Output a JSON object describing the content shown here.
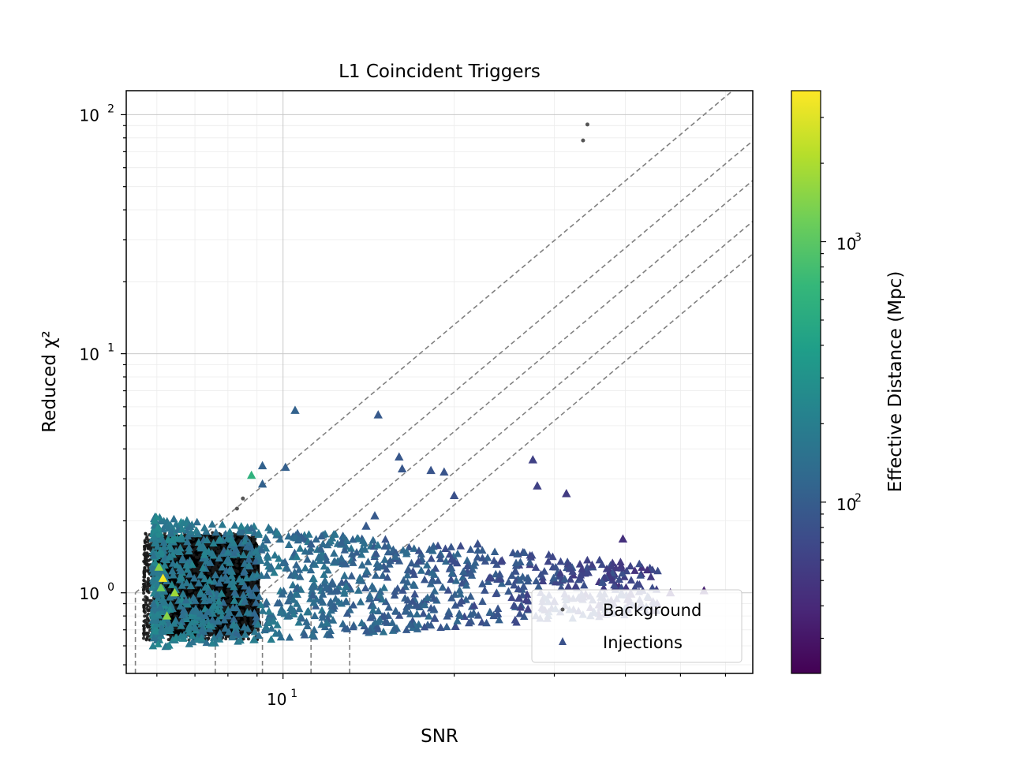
{
  "chart_data": {
    "type": "scatter",
    "title": "L1 Coincident Triggers",
    "xlabel": "SNR",
    "ylabel": "Reduced χ²",
    "xscale": "log",
    "yscale": "log",
    "xlim": [
      5.3,
      67
    ],
    "ylim": [
      0.46,
      126
    ],
    "x_ticks": [
      {
        "value": 10,
        "label": "10",
        "exp": "1"
      }
    ],
    "y_ticks": [
      {
        "value": 1,
        "label": "10",
        "exp": "0"
      },
      {
        "value": 10,
        "label": "10",
        "exp": "1"
      },
      {
        "value": 100,
        "label": "10",
        "exp": "2"
      }
    ],
    "grid": true,
    "legend": {
      "placement": "lower-right",
      "entries": [
        {
          "label": "Background",
          "marker": "dot",
          "color": "#555555"
        },
        {
          "label": "Injections",
          "marker": "triangle",
          "color": "#3b528b"
        }
      ]
    },
    "colorbar": {
      "label": "Effective Distance (Mpc)",
      "scale": "log",
      "range": [
        22,
        3800
      ],
      "cmap": "viridis",
      "ticks": [
        {
          "value": 100,
          "label": "10",
          "exp": "2"
        },
        {
          "value": 1000,
          "label": "10",
          "exp": "3"
        }
      ]
    },
    "threshold_lines": [
      {
        "snr0": 5.5,
        "chisq0": 1.0
      },
      {
        "snr0": 7.6,
        "chisq0": 1.0
      },
      {
        "snr0": 9.2,
        "chisq0": 1.0
      },
      {
        "snr0": 11.2,
        "chisq0": 1.0
      },
      {
        "snr0": 13.1,
        "chisq0": 1.0
      }
    ],
    "series": [
      {
        "name": "Background",
        "marker": "dot",
        "color": "#555555",
        "cluster": {
          "snr_range": [
            5.8,
            9.1
          ],
          "chisq_range": [
            0.66,
            1.75
          ],
          "shape": "dense"
        },
        "points": [
          {
            "x": 34.3,
            "y": 91.0
          },
          {
            "x": 33.7,
            "y": 78.0
          },
          {
            "x": 8.5,
            "y": 2.48
          },
          {
            "x": 8.3,
            "y": 2.25
          }
        ]
      },
      {
        "name": "Injections",
        "marker": "triangle",
        "color_by": "effective_distance_mpc",
        "points": [
          {
            "x": 10.5,
            "y": 5.8,
            "c": 110
          },
          {
            "x": 14.7,
            "y": 5.55,
            "c": 95
          },
          {
            "x": 9.2,
            "y": 3.4,
            "c": 110
          },
          {
            "x": 10.1,
            "y": 3.35,
            "c": 105
          },
          {
            "x": 8.8,
            "y": 3.1,
            "c": 600
          },
          {
            "x": 16.2,
            "y": 3.3,
            "c": 90
          },
          {
            "x": 18.2,
            "y": 3.25,
            "c": 85
          },
          {
            "x": 19.2,
            "y": 3.2,
            "c": 85
          },
          {
            "x": 27.5,
            "y": 3.6,
            "c": 60
          },
          {
            "x": 9.2,
            "y": 2.85,
            "c": 110
          },
          {
            "x": 28.0,
            "y": 2.8,
            "c": 60
          },
          {
            "x": 16.0,
            "y": 3.7,
            "c": 90
          },
          {
            "x": 20.0,
            "y": 2.55,
            "c": 80
          },
          {
            "x": 31.5,
            "y": 2.6,
            "c": 55
          },
          {
            "x": 14.5,
            "y": 2.1,
            "c": 95
          },
          {
            "x": 14.0,
            "y": 1.9,
            "c": 95
          },
          {
            "x": 39.6,
            "y": 1.68,
            "c": 45
          },
          {
            "x": 11.2,
            "y": 1.6,
            "c": 100
          },
          {
            "x": 22.0,
            "y": 1.6,
            "c": 80
          },
          {
            "x": 6.15,
            "y": 1.15,
            "c": 3500
          },
          {
            "x": 6.05,
            "y": 1.28,
            "c": 1500
          },
          {
            "x": 6.45,
            "y": 1.0,
            "c": 1800
          },
          {
            "x": 6.25,
            "y": 0.8,
            "c": 1500
          },
          {
            "x": 6.1,
            "y": 1.05,
            "c": 1200
          },
          {
            "x": 48.0,
            "y": 1.0,
            "c": 40
          },
          {
            "x": 55.0,
            "y": 1.02,
            "c": 35
          },
          {
            "x": 30.0,
            "y": 0.92,
            "c": 60
          },
          {
            "x": 26.0,
            "y": 0.95,
            "c": 65
          }
        ],
        "cluster": {
          "snr_range": [
            5.9,
            46
          ],
          "chisq_range": [
            0.85,
            1.6
          ],
          "shape": "dense"
        }
      }
    ]
  }
}
